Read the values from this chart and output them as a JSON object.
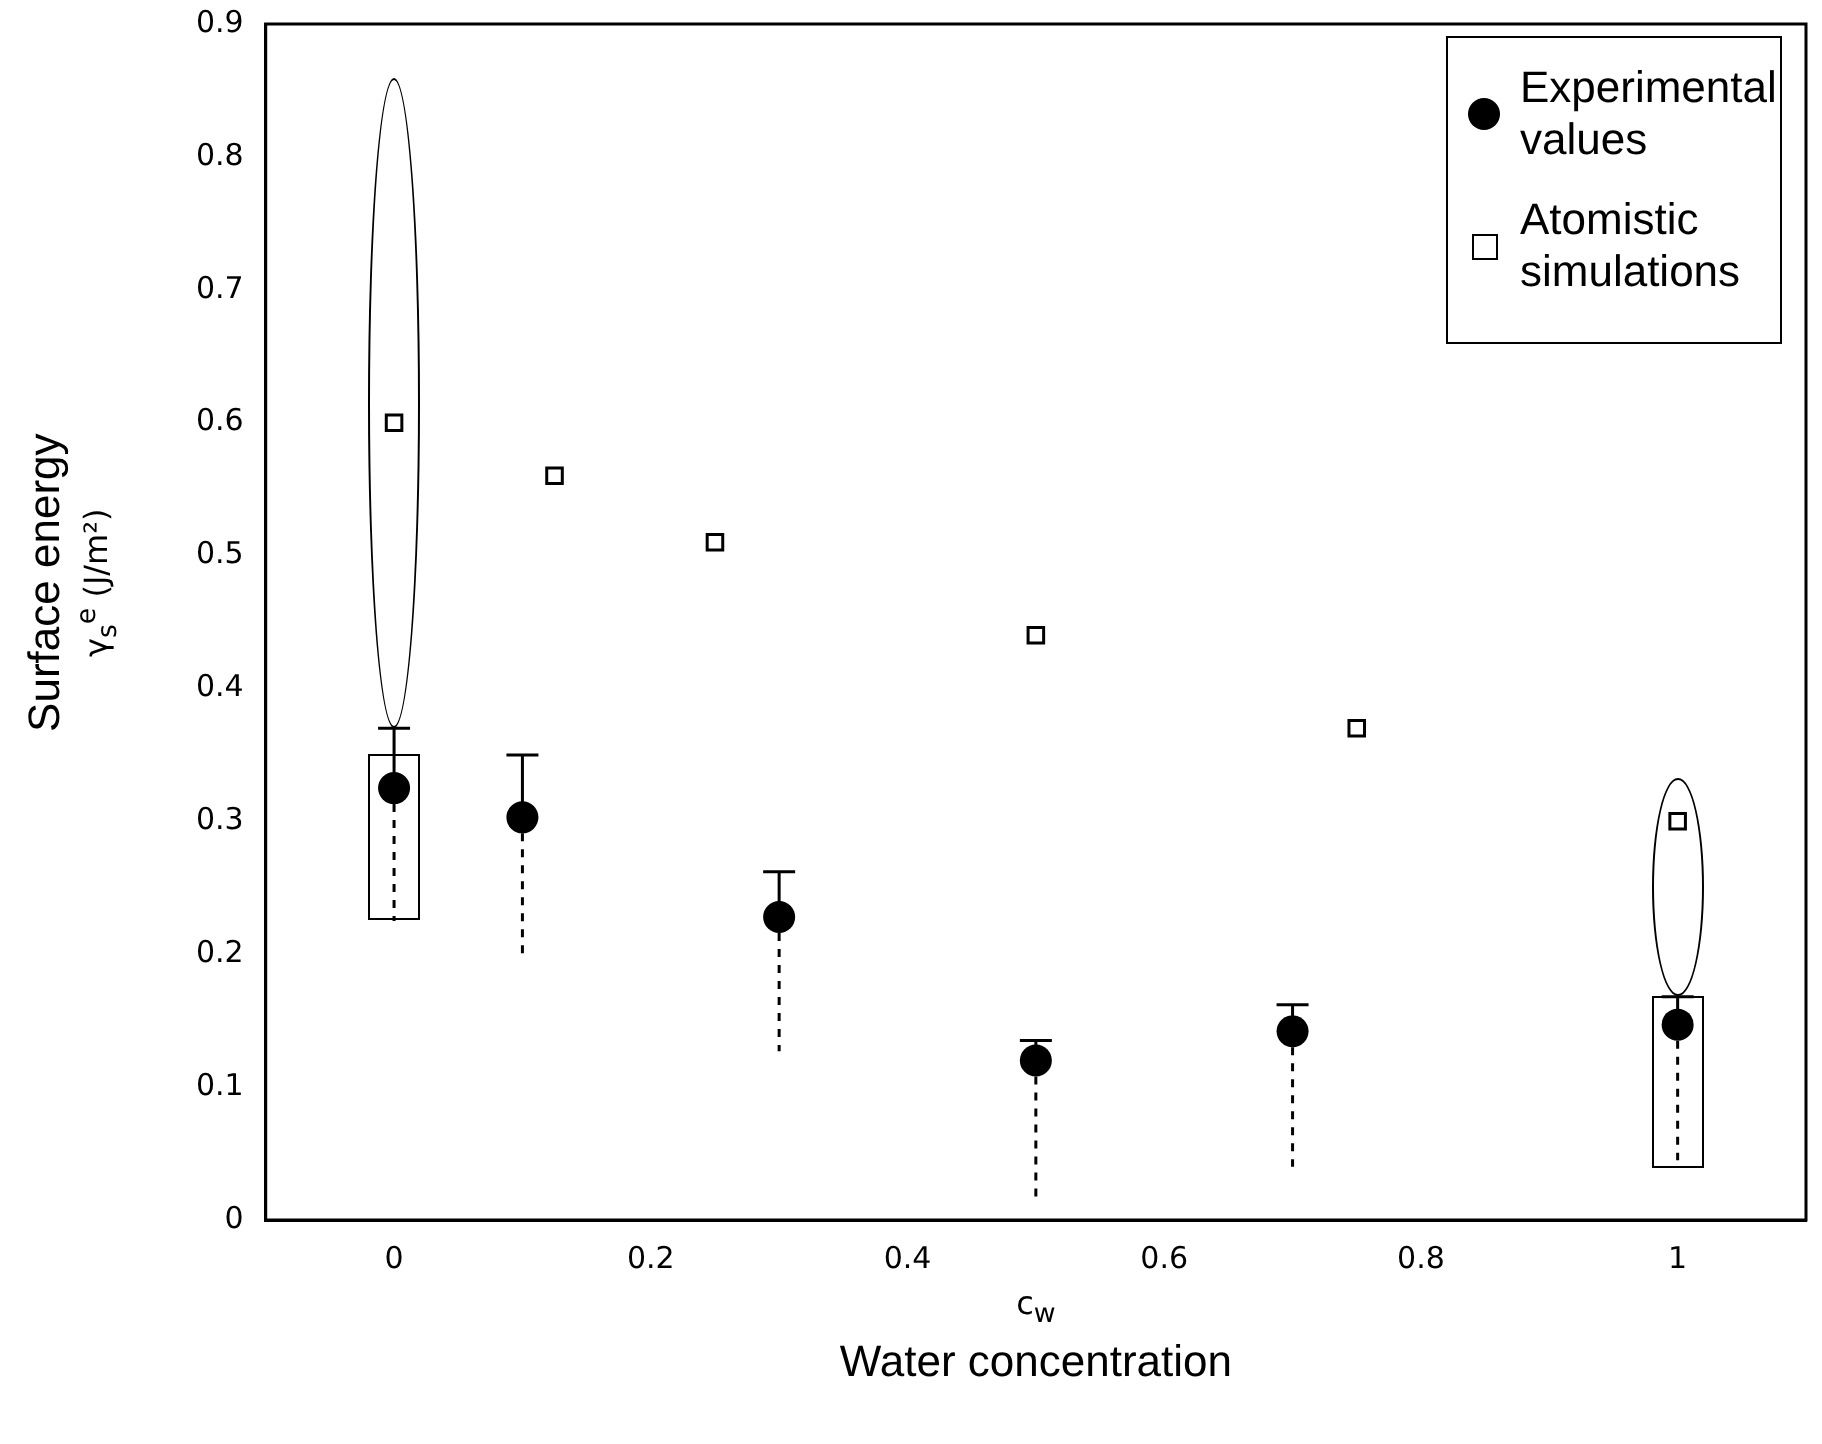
{
  "chart_data": {
    "type": "scatter",
    "xlabel": "c$_{w}$\nWater concentration",
    "ylabel": "Surface energy\nγ$_{s}$$^{e}$ (J/m²)",
    "xlim": [
      -0.1,
      1.1
    ],
    "xticks": [
      0,
      0.2,
      0.4,
      0.6,
      0.8,
      1
    ],
    "ylim": [
      0,
      0.9
    ],
    "yticks": [
      0,
      0.1,
      0.2,
      0.3,
      0.4,
      0.5,
      0.6,
      0.7,
      0.8,
      0.9
    ],
    "grid": false,
    "legend": "top right",
    "series": [
      {
        "name": "Experimental values",
        "color": "#000000",
        "marker": "circle",
        "x": [
          0,
          0.1,
          0.3,
          0.5,
          0.7,
          1
        ],
        "values": [
          0.325,
          0.303,
          0.228,
          0.12,
          0.142,
          0.147
        ],
        "errors": [
          [
            0.225,
            0.37
          ],
          [
            0.2,
            0.35
          ],
          [
            0.127,
            0.262
          ],
          [
            0.015,
            0.135
          ],
          [
            0.04,
            0.162
          ],
          [
            0.045,
            0.168
          ]
        ]
      },
      {
        "name": "Atomistic simulations",
        "color": "#000000",
        "marker": "square",
        "x": [
          0,
          0.125,
          0.25,
          0.5,
          0.75,
          1
        ],
        "values": [
          0.6,
          0.56,
          0.51,
          0.44,
          0.37,
          0.3
        ]
      }
    ]
  }
}
